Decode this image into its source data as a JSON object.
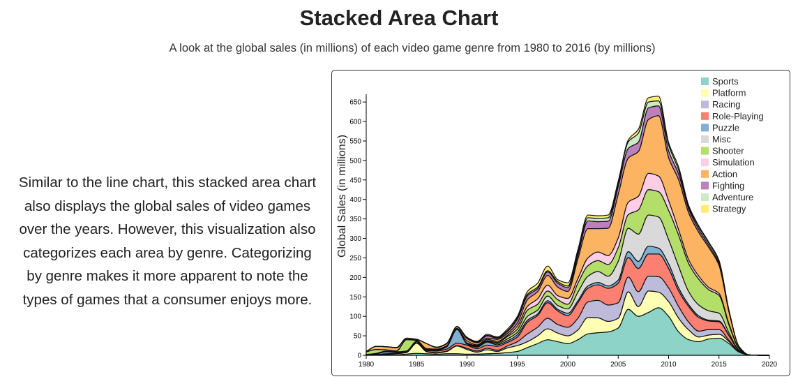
{
  "header": {
    "title": "Stacked Area Chart",
    "subtitle": "A look at the global sales (in millions) of each video game genre from 1980 to 2016 (by millions)"
  },
  "description": "Similar to the line chart, this stacked area chart also displays the global sales of video games over the years. However, this visualization also categorizes each area by genre. Categorizing by genre makes it more apparent to note the types of games that a consumer enjoys more.",
  "chart_data": {
    "type": "area",
    "title": "",
    "xlabel": "",
    "ylabel": "Global Sales (in millions)",
    "xlim": [
      1980,
      2020
    ],
    "ylim": [
      0,
      670
    ],
    "x_ticks": [
      1980,
      1985,
      1990,
      1995,
      2000,
      2005,
      2010,
      2015,
      2020
    ],
    "y_ticks": [
      0,
      50,
      100,
      150,
      200,
      250,
      300,
      350,
      400,
      450,
      500,
      550,
      600,
      650
    ],
    "grid": false,
    "legend_position": "top-right",
    "x": [
      1980,
      1981,
      1982,
      1983,
      1984,
      1985,
      1986,
      1987,
      1988,
      1989,
      1990,
      1991,
      1992,
      1993,
      1994,
      1995,
      1996,
      1997,
      1998,
      1999,
      2000,
      2001,
      2002,
      2003,
      2004,
      2005,
      2006,
      2007,
      2008,
      2009,
      2010,
      2011,
      2012,
      2013,
      2014,
      2015,
      2016,
      2017,
      2018,
      2019,
      2020
    ],
    "series": [
      {
        "name": "Sports",
        "color": "#8dd3c7",
        "values": [
          0,
          1,
          1,
          1,
          3,
          5,
          4,
          3,
          4,
          4,
          3,
          3,
          4,
          5,
          7,
          10,
          20,
          30,
          40,
          35,
          30,
          40,
          55,
          58,
          60,
          70,
          118,
          100,
          110,
          122,
          100,
          60,
          40,
          35,
          42,
          44,
          30,
          8,
          1,
          0,
          0
        ]
      },
      {
        "name": "Platform",
        "color": "#ffffb3",
        "values": [
          0,
          1,
          2,
          3,
          4,
          26,
          5,
          3,
          6,
          20,
          12,
          5,
          10,
          5,
          12,
          15,
          15,
          20,
          28,
          22,
          20,
          25,
          42,
          38,
          27,
          25,
          45,
          25,
          55,
          40,
          38,
          35,
          25,
          12,
          10,
          10,
          5,
          1,
          0,
          0,
          0
        ]
      },
      {
        "name": "Racing",
        "color": "#bebada",
        "values": [
          0,
          0,
          1,
          1,
          1,
          1,
          1,
          1,
          1,
          1,
          3,
          3,
          4,
          3,
          5,
          10,
          20,
          22,
          27,
          22,
          22,
          30,
          40,
          45,
          42,
          40,
          38,
          38,
          38,
          40,
          35,
          30,
          20,
          15,
          14,
          12,
          3,
          1,
          0,
          0,
          0
        ]
      },
      {
        "name": "Role-Playing",
        "color": "#fb8072",
        "values": [
          0,
          0,
          0,
          0,
          0,
          0,
          2,
          4,
          5,
          6,
          8,
          6,
          8,
          10,
          9,
          12,
          30,
          30,
          40,
          35,
          30,
          40,
          35,
          40,
          43,
          50,
          50,
          60,
          57,
          58,
          50,
          40,
          40,
          35,
          22,
          20,
          12,
          2,
          0,
          0,
          0
        ]
      },
      {
        "name": "Puzzle",
        "color": "#80b1d3",
        "values": [
          1,
          2,
          5,
          2,
          1,
          3,
          1,
          1,
          6,
          35,
          3,
          4,
          8,
          4,
          4,
          6,
          5,
          4,
          5,
          4,
          6,
          5,
          6,
          6,
          6,
          8,
          15,
          18,
          20,
          15,
          12,
          8,
          5,
          4,
          2,
          2,
          1,
          0,
          0,
          0,
          0
        ]
      },
      {
        "name": "Misc",
        "color": "#d9d9d9",
        "values": [
          1,
          1,
          2,
          2,
          2,
          1,
          1,
          1,
          1,
          1,
          1,
          2,
          2,
          3,
          5,
          6,
          10,
          10,
          12,
          10,
          11,
          22,
          25,
          28,
          25,
          48,
          60,
          70,
          80,
          80,
          62,
          55,
          33,
          28,
          24,
          20,
          6,
          1,
          0,
          0,
          0
        ]
      },
      {
        "name": "Shooter",
        "color": "#b3de69",
        "values": [
          7,
          10,
          3,
          2,
          29,
          2,
          1,
          2,
          1,
          1,
          2,
          2,
          2,
          3,
          6,
          8,
          16,
          15,
          13,
          15,
          12,
          23,
          27,
          28,
          30,
          35,
          35,
          62,
          65,
          65,
          75,
          80,
          72,
          66,
          54,
          46,
          20,
          4,
          0,
          0,
          0
        ]
      },
      {
        "name": "Simulation",
        "color": "#fccde5",
        "values": [
          0,
          0,
          0,
          0,
          1,
          1,
          2,
          1,
          1,
          1,
          5,
          2,
          3,
          3,
          3,
          8,
          10,
          14,
          15,
          10,
          15,
          12,
          20,
          22,
          23,
          25,
          32,
          35,
          42,
          40,
          25,
          14,
          10,
          8,
          6,
          5,
          3,
          1,
          0,
          0,
          0
        ]
      },
      {
        "name": "Action",
        "color": "#fdb462",
        "values": [
          1,
          8,
          8,
          8,
          3,
          2,
          13,
          4,
          5,
          4,
          6,
          5,
          3,
          5,
          5,
          8,
          17,
          18,
          25,
          22,
          18,
          50,
          75,
          60,
          70,
          112,
          113,
          115,
          138,
          155,
          110,
          128,
          120,
          112,
          102,
          72,
          30,
          4,
          0,
          0,
          0
        ]
      },
      {
        "name": "Fighting",
        "color": "#bc80bd",
        "values": [
          0,
          0,
          0,
          0,
          0,
          0,
          0,
          0,
          0,
          0,
          2,
          2,
          6,
          3,
          5,
          10,
          10,
          8,
          9,
          10,
          10,
          10,
          20,
          18,
          18,
          20,
          25,
          24,
          30,
          25,
          18,
          15,
          10,
          8,
          6,
          4,
          2,
          0,
          0,
          0,
          0
        ]
      },
      {
        "name": "Adventure",
        "color": "#ccebc5",
        "values": [
          0,
          0,
          0,
          1,
          0,
          0,
          0,
          1,
          1,
          1,
          1,
          1,
          1,
          1,
          2,
          3,
          4,
          4,
          3,
          4,
          4,
          8,
          8,
          8,
          9,
          9,
          17,
          23,
          15,
          13,
          15,
          10,
          5,
          6,
          6,
          6,
          2,
          0,
          0,
          0,
          0
        ]
      },
      {
        "name": "Strategy",
        "color": "#ffed6f",
        "values": [
          0,
          0,
          0,
          0,
          0,
          0,
          0,
          0,
          0,
          0,
          0,
          1,
          3,
          2,
          4,
          4,
          7,
          10,
          12,
          5,
          8,
          6,
          7,
          7,
          7,
          5,
          5,
          10,
          11,
          12,
          6,
          8,
          4,
          3,
          2,
          3,
          1,
          0,
          0,
          0,
          0
        ]
      }
    ]
  }
}
